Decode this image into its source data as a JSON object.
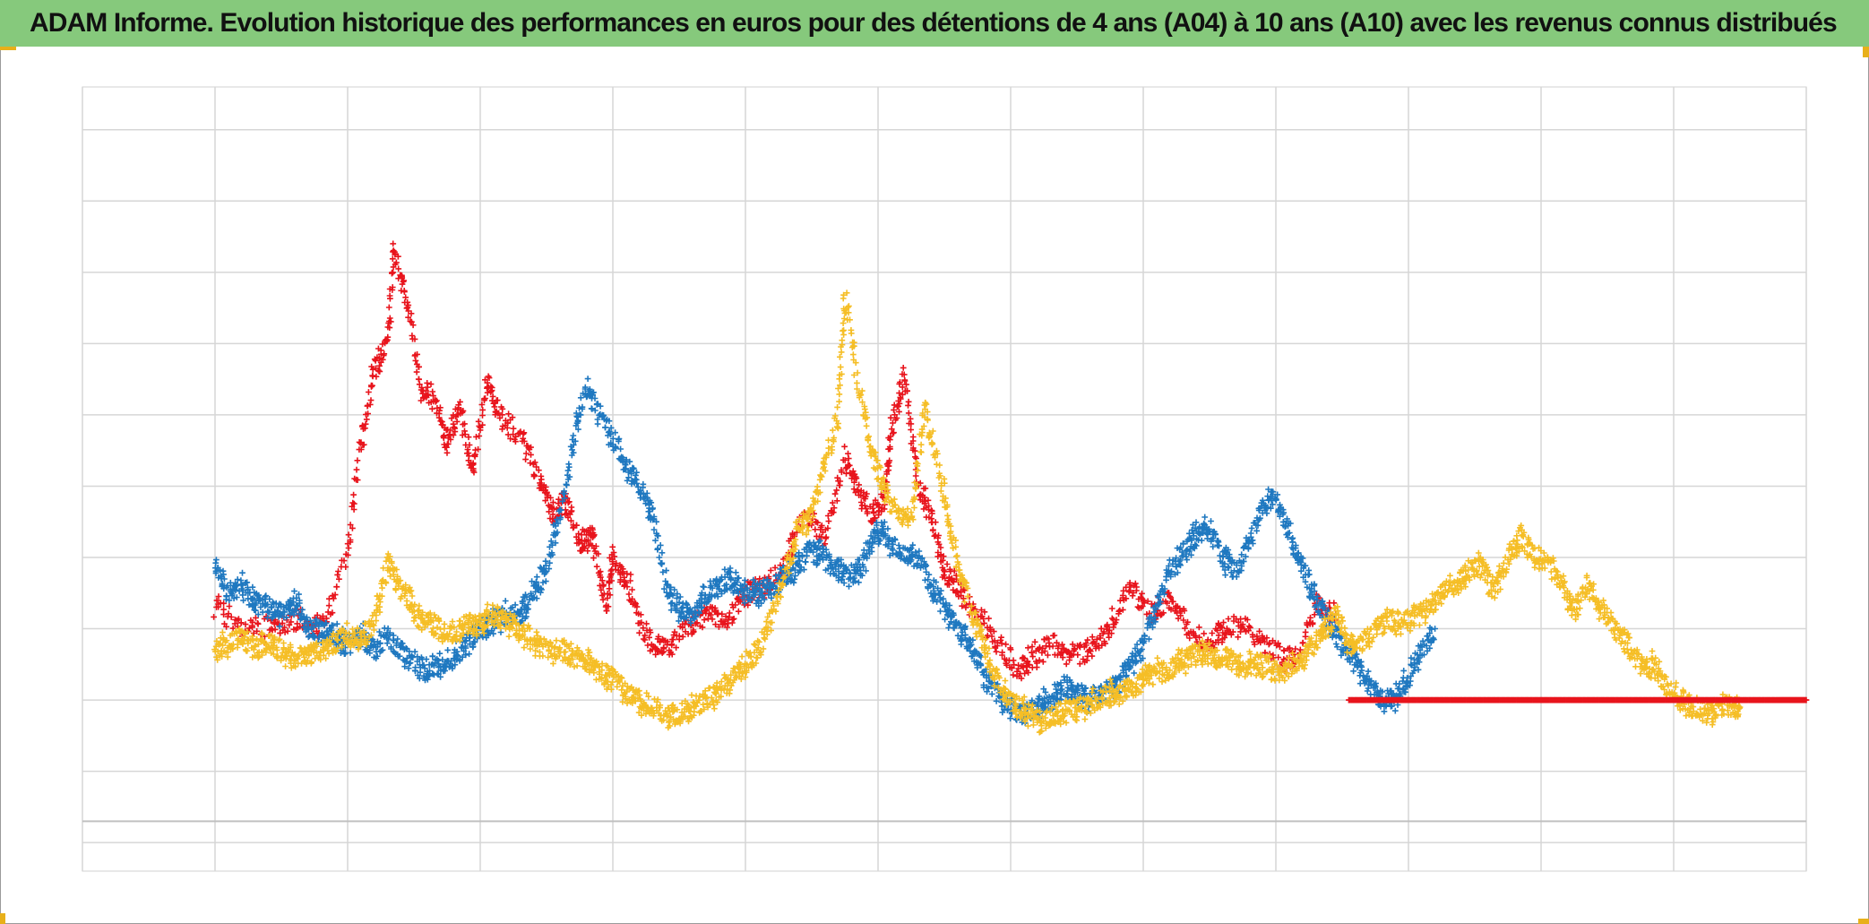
{
  "chart_data": {
    "type": "scatter",
    "title": "ADAM Informe. Evolution historique des performances en euros pour des détentions de 4 ans (A04) à 10 ans (A10) avec les revenus connus distribués",
    "xlabel": "",
    "ylabel": "",
    "xlim": [
      0,
      13
    ],
    "ylim": [
      -1.4,
      9.6
    ],
    "grid": true,
    "marker": "+",
    "series": [
      {
        "color": "#e8141c",
        "points": [
          [
            1.0,
            2.3
          ],
          [
            1.2,
            2.0
          ],
          [
            1.4,
            2.0
          ],
          [
            1.6,
            2.1
          ],
          [
            1.8,
            2.0
          ],
          [
            2.0,
            3.0
          ],
          [
            2.1,
            4.6
          ],
          [
            2.2,
            5.6
          ],
          [
            2.3,
            6.0
          ],
          [
            2.35,
            7.3
          ],
          [
            2.45,
            6.6
          ],
          [
            2.55,
            5.4
          ],
          [
            2.65,
            5.2
          ],
          [
            2.75,
            4.6
          ],
          [
            2.85,
            5.1
          ],
          [
            2.95,
            4.2
          ],
          [
            3.05,
            5.5
          ],
          [
            3.15,
            5.0
          ],
          [
            3.3,
            4.7
          ],
          [
            3.45,
            4.1
          ],
          [
            3.55,
            3.6
          ],
          [
            3.65,
            3.8
          ],
          [
            3.75,
            3.2
          ],
          [
            3.85,
            3.3
          ],
          [
            3.95,
            2.3
          ],
          [
            4.0,
            3.0
          ],
          [
            4.1,
            2.7
          ],
          [
            4.25,
            1.9
          ],
          [
            4.4,
            1.7
          ],
          [
            4.55,
            2.0
          ],
          [
            4.7,
            2.2
          ],
          [
            4.85,
            2.1
          ],
          [
            5.0,
            2.5
          ],
          [
            5.15,
            2.6
          ],
          [
            5.3,
            2.9
          ],
          [
            5.45,
            3.7
          ],
          [
            5.6,
            3.2
          ],
          [
            5.75,
            4.4
          ],
          [
            5.85,
            4.0
          ],
          [
            5.95,
            3.6
          ],
          [
            6.05,
            3.8
          ],
          [
            6.1,
            4.8
          ],
          [
            6.2,
            5.6
          ],
          [
            6.3,
            4.0
          ],
          [
            6.4,
            3.6
          ],
          [
            6.5,
            2.8
          ],
          [
            6.6,
            2.6
          ],
          [
            6.75,
            2.2
          ],
          [
            6.9,
            1.8
          ],
          [
            7.05,
            1.4
          ],
          [
            7.15,
            1.6
          ],
          [
            7.3,
            1.8
          ],
          [
            7.45,
            1.6
          ],
          [
            7.6,
            1.7
          ],
          [
            7.75,
            2.0
          ],
          [
            7.9,
            2.6
          ],
          [
            8.05,
            2.2
          ],
          [
            8.2,
            2.4
          ],
          [
            8.35,
            2.0
          ],
          [
            8.5,
            1.8
          ],
          [
            8.6,
            2.0
          ],
          [
            8.75,
            2.1
          ],
          [
            8.9,
            1.8
          ],
          [
            9.05,
            1.6
          ],
          [
            9.15,
            1.6
          ],
          [
            9.3,
            2.3
          ],
          [
            9.45,
            2.2
          ]
        ]
      },
      {
        "color": "#1f78c0",
        "points": [
          [
            1.0,
            2.9
          ],
          [
            1.1,
            2.5
          ],
          [
            1.2,
            2.6
          ],
          [
            1.3,
            2.4
          ],
          [
            1.4,
            2.3
          ],
          [
            1.5,
            2.2
          ],
          [
            1.6,
            2.4
          ],
          [
            1.7,
            2.0
          ],
          [
            1.8,
            2.0
          ],
          [
            1.9,
            1.9
          ],
          [
            2.0,
            1.8
          ],
          [
            2.1,
            1.9
          ],
          [
            2.2,
            1.7
          ],
          [
            2.3,
            1.9
          ],
          [
            2.4,
            1.7
          ],
          [
            2.5,
            1.5
          ],
          [
            2.6,
            1.4
          ],
          [
            2.7,
            1.5
          ],
          [
            2.8,
            1.6
          ],
          [
            2.9,
            1.8
          ],
          [
            3.0,
            2.0
          ],
          [
            3.1,
            2.1
          ],
          [
            3.2,
            2.2
          ],
          [
            3.3,
            2.2
          ],
          [
            3.4,
            2.5
          ],
          [
            3.5,
            2.9
          ],
          [
            3.6,
            3.6
          ],
          [
            3.7,
            4.6
          ],
          [
            3.8,
            5.4
          ],
          [
            3.9,
            5.0
          ],
          [
            4.0,
            4.7
          ],
          [
            4.1,
            4.3
          ],
          [
            4.2,
            4.0
          ],
          [
            4.3,
            3.6
          ],
          [
            4.4,
            2.6
          ],
          [
            4.5,
            2.3
          ],
          [
            4.6,
            2.2
          ],
          [
            4.7,
            2.5
          ],
          [
            4.8,
            2.6
          ],
          [
            4.9,
            2.7
          ],
          [
            5.0,
            2.5
          ],
          [
            5.1,
            2.5
          ],
          [
            5.2,
            2.6
          ],
          [
            5.3,
            2.7
          ],
          [
            5.4,
            2.9
          ],
          [
            5.5,
            3.1
          ],
          [
            5.6,
            3.0
          ],
          [
            5.7,
            2.8
          ],
          [
            5.8,
            2.7
          ],
          [
            5.9,
            3.0
          ],
          [
            6.0,
            3.4
          ],
          [
            6.1,
            3.2
          ],
          [
            6.2,
            3.0
          ],
          [
            6.3,
            3.0
          ],
          [
            6.4,
            2.6
          ],
          [
            6.5,
            2.3
          ],
          [
            6.6,
            2.0
          ],
          [
            6.7,
            1.8
          ],
          [
            6.8,
            1.3
          ],
          [
            6.9,
            1.1
          ],
          [
            7.0,
            0.9
          ],
          [
            7.1,
            0.8
          ],
          [
            7.2,
            0.9
          ],
          [
            7.3,
            1.0
          ],
          [
            7.4,
            1.2
          ],
          [
            7.5,
            1.1
          ],
          [
            7.6,
            1.0
          ],
          [
            7.7,
            1.1
          ],
          [
            7.8,
            1.2
          ],
          [
            7.9,
            1.5
          ],
          [
            8.0,
            1.8
          ],
          [
            8.1,
            2.3
          ],
          [
            8.2,
            2.8
          ],
          [
            8.3,
            3.1
          ],
          [
            8.4,
            3.3
          ],
          [
            8.5,
            3.4
          ],
          [
            8.6,
            3.0
          ],
          [
            8.7,
            2.8
          ],
          [
            8.8,
            3.2
          ],
          [
            8.9,
            3.7
          ],
          [
            9.0,
            3.9
          ],
          [
            9.1,
            3.3
          ],
          [
            9.2,
            2.9
          ],
          [
            9.3,
            2.4
          ],
          [
            9.4,
            2.1
          ],
          [
            9.5,
            1.8
          ],
          [
            9.6,
            1.5
          ],
          [
            9.7,
            1.2
          ],
          [
            9.8,
            1.0
          ],
          [
            9.9,
            1.0
          ],
          [
            10.0,
            1.3
          ],
          [
            10.1,
            1.7
          ],
          [
            10.2,
            2.0
          ]
        ]
      },
      {
        "color": "#f5be26",
        "points": [
          [
            1.0,
            1.7
          ],
          [
            1.1,
            1.8
          ],
          [
            1.2,
            1.9
          ],
          [
            1.3,
            1.7
          ],
          [
            1.4,
            1.8
          ],
          [
            1.5,
            1.7
          ],
          [
            1.6,
            1.6
          ],
          [
            1.7,
            1.6
          ],
          [
            1.8,
            1.7
          ],
          [
            1.9,
            1.8
          ],
          [
            2.0,
            1.9
          ],
          [
            2.1,
            1.8
          ],
          [
            2.2,
            2.1
          ],
          [
            2.3,
            2.9
          ],
          [
            2.4,
            2.6
          ],
          [
            2.5,
            2.3
          ],
          [
            2.6,
            2.1
          ],
          [
            2.7,
            2.0
          ],
          [
            2.8,
            1.9
          ],
          [
            2.9,
            2.1
          ],
          [
            3.0,
            2.1
          ],
          [
            3.1,
            2.2
          ],
          [
            3.2,
            2.1
          ],
          [
            3.3,
            2.0
          ],
          [
            3.4,
            1.8
          ],
          [
            3.5,
            1.7
          ],
          [
            3.6,
            1.7
          ],
          [
            3.7,
            1.6
          ],
          [
            3.8,
            1.6
          ],
          [
            3.9,
            1.4
          ],
          [
            4.0,
            1.3
          ],
          [
            4.1,
            1.1
          ],
          [
            4.2,
            1.0
          ],
          [
            4.3,
            0.9
          ],
          [
            4.4,
            0.8
          ],
          [
            4.5,
            0.8
          ],
          [
            4.6,
            0.9
          ],
          [
            4.7,
            1.0
          ],
          [
            4.8,
            1.1
          ],
          [
            4.9,
            1.3
          ],
          [
            5.0,
            1.5
          ],
          [
            5.1,
            1.7
          ],
          [
            5.2,
            2.2
          ],
          [
            5.3,
            2.8
          ],
          [
            5.4,
            3.4
          ],
          [
            5.5,
            3.6
          ],
          [
            5.6,
            4.3
          ],
          [
            5.7,
            5.0
          ],
          [
            5.75,
            6.7
          ],
          [
            5.85,
            5.4
          ],
          [
            5.95,
            4.5
          ],
          [
            6.05,
            3.9
          ],
          [
            6.15,
            3.6
          ],
          [
            6.25,
            3.5
          ],
          [
            6.35,
            5.1
          ],
          [
            6.45,
            4.3
          ],
          [
            6.55,
            3.3
          ],
          [
            6.65,
            2.6
          ],
          [
            6.75,
            2.0
          ],
          [
            6.85,
            1.5
          ],
          [
            6.95,
            1.1
          ],
          [
            7.05,
            0.9
          ],
          [
            7.15,
            0.8
          ],
          [
            7.25,
            0.7
          ],
          [
            7.35,
            0.8
          ],
          [
            7.45,
            0.9
          ],
          [
            7.55,
            0.9
          ],
          [
            7.65,
            1.0
          ],
          [
            7.75,
            1.1
          ],
          [
            7.85,
            1.1
          ],
          [
            7.95,
            1.2
          ],
          [
            8.05,
            1.4
          ],
          [
            8.15,
            1.4
          ],
          [
            8.25,
            1.5
          ],
          [
            8.35,
            1.6
          ],
          [
            8.45,
            1.7
          ],
          [
            8.55,
            1.6
          ],
          [
            8.65,
            1.6
          ],
          [
            8.75,
            1.5
          ],
          [
            8.85,
            1.5
          ],
          [
            8.95,
            1.5
          ],
          [
            9.05,
            1.4
          ],
          [
            9.15,
            1.5
          ],
          [
            9.25,
            1.7
          ],
          [
            9.35,
            1.9
          ],
          [
            9.45,
            2.2
          ],
          [
            9.55,
            1.8
          ],
          [
            9.65,
            1.8
          ],
          [
            9.75,
            2.0
          ],
          [
            9.85,
            2.1
          ],
          [
            9.95,
            2.1
          ],
          [
            10.05,
            2.2
          ],
          [
            10.15,
            2.3
          ],
          [
            10.25,
            2.5
          ],
          [
            10.35,
            2.6
          ],
          [
            10.45,
            2.8
          ],
          [
            10.55,
            2.9
          ],
          [
            10.65,
            2.5
          ],
          [
            10.75,
            3.0
          ],
          [
            10.85,
            3.3
          ],
          [
            10.95,
            3.0
          ],
          [
            11.05,
            2.9
          ],
          [
            11.15,
            2.7
          ],
          [
            11.25,
            2.2
          ],
          [
            11.35,
            2.6
          ],
          [
            11.45,
            2.3
          ],
          [
            11.55,
            2.0
          ],
          [
            11.65,
            1.8
          ],
          [
            11.75,
            1.5
          ],
          [
            11.85,
            1.5
          ],
          [
            11.95,
            1.2
          ],
          [
            12.05,
            1.0
          ],
          [
            12.15,
            0.9
          ],
          [
            12.25,
            0.8
          ],
          [
            12.35,
            0.9
          ],
          [
            12.45,
            0.9
          ],
          [
            12.5,
            0.9
          ]
        ]
      },
      {
        "color": "#e8141c",
        "points": [
          [
            9.55,
            1.0
          ],
          [
            9.8,
            1.0
          ],
          [
            10.05,
            1.0
          ],
          [
            10.3,
            1.0
          ],
          [
            10.55,
            1.0
          ],
          [
            10.8,
            1.0
          ],
          [
            11.05,
            1.0
          ],
          [
            11.3,
            1.0
          ],
          [
            11.55,
            1.0
          ],
          [
            11.8,
            1.0
          ],
          [
            12.05,
            1.0
          ],
          [
            12.3,
            1.0
          ],
          [
            12.55,
            1.0
          ],
          [
            12.8,
            1.0
          ],
          [
            13.0,
            1.0
          ]
        ]
      }
    ]
  }
}
